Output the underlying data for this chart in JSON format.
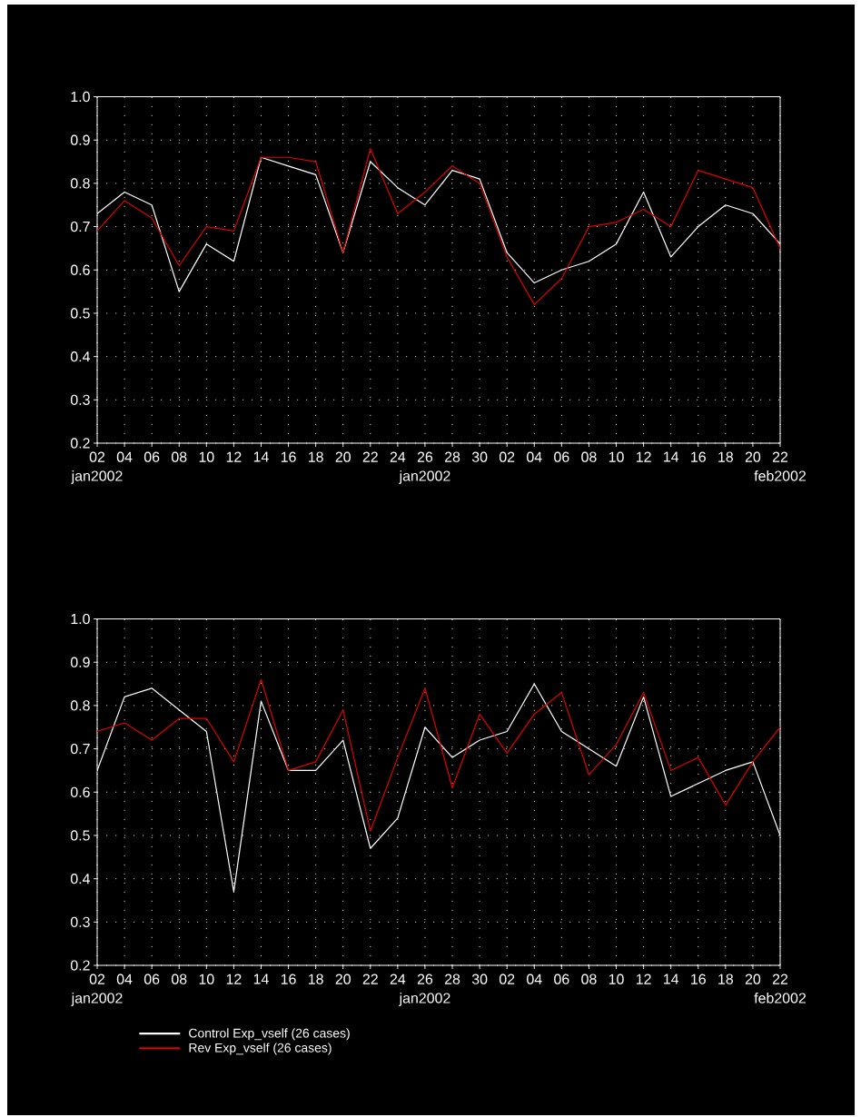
{
  "chart_data": [
    {
      "type": "line",
      "categories": [
        "02 jan2002",
        "04",
        "06",
        "08",
        "10",
        "12",
        "14",
        "16",
        "18",
        "20",
        "22",
        "24",
        "26 jan2002",
        "28",
        "30",
        "02",
        "04",
        "06",
        "08",
        "10",
        "12",
        "14",
        "16",
        "18",
        "20",
        "22 feb2002"
      ],
      "series": [
        {
          "color": "#ffffff",
          "values": [
            0.73,
            0.78,
            0.75,
            0.55,
            0.66,
            0.62,
            0.86,
            0.84,
            0.82,
            0.64,
            0.85,
            0.79,
            0.75,
            0.83,
            0.81,
            0.64,
            0.57,
            0.6,
            0.62,
            0.66,
            0.78,
            0.63,
            0.7,
            0.75,
            0.73,
            0.66
          ]
        },
        {
          "color": "#e00000",
          "values": [
            0.69,
            0.76,
            0.72,
            0.61,
            0.7,
            0.69,
            0.86,
            0.86,
            0.85,
            0.64,
            0.88,
            0.73,
            0.78,
            0.84,
            0.8,
            0.63,
            0.52,
            0.58,
            0.7,
            0.71,
            0.74,
            0.7,
            0.83,
            0.81,
            0.79,
            0.65
          ]
        }
      ],
      "ylim": [
        0.2,
        1.0
      ],
      "yticks": [
        0.2,
        0.3,
        0.4,
        0.5,
        0.6,
        0.7,
        0.8,
        0.9,
        {
          "value": 1.0,
          "label": "1.0"
        }
      ],
      "grid": true
    },
    {
      "type": "line",
      "categories": [
        "02 jan2002",
        "04",
        "06",
        "08",
        "10",
        "12",
        "14",
        "16",
        "18",
        "20",
        "22",
        "24",
        "26 jan2002",
        "28",
        "30",
        "02",
        "04",
        "06",
        "08",
        "10",
        "12",
        "14",
        "16",
        "18",
        "20",
        "22 feb2002"
      ],
      "series": [
        {
          "name": "Control Exp_vself (26 cases)",
          "color": "#ffffff",
          "values": [
            0.65,
            0.82,
            0.84,
            0.79,
            0.74,
            0.37,
            0.81,
            0.65,
            0.65,
            0.72,
            0.47,
            0.54,
            0.75,
            0.68,
            0.72,
            0.74,
            0.85,
            0.74,
            0.7,
            0.66,
            0.82,
            0.59,
            0.62,
            0.65,
            0.67,
            0.5
          ]
        },
        {
          "name": "Rev Exp_vself (26 cases)",
          "color": "#e00000",
          "values": [
            0.74,
            0.76,
            0.72,
            0.77,
            0.77,
            0.67,
            0.86,
            0.65,
            0.67,
            0.79,
            0.51,
            0.68,
            0.84,
            0.61,
            0.78,
            0.69,
            0.78,
            0.83,
            0.64,
            0.71,
            0.83,
            0.65,
            0.68,
            0.57,
            0.67,
            0.75
          ]
        }
      ],
      "ylim": [
        0.2,
        1.0
      ],
      "yticks": [
        0.2,
        0.3,
        0.4,
        0.5,
        0.6,
        0.7,
        0.8,
        0.9,
        {
          "value": 1.0,
          "label": "1.0"
        }
      ],
      "grid": true,
      "legend": "bottom left"
    }
  ]
}
